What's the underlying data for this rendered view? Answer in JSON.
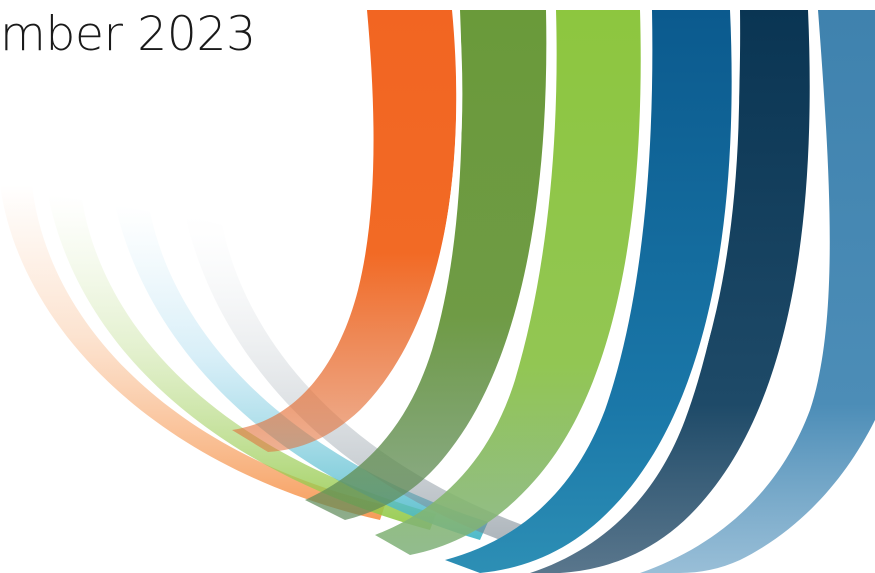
{
  "slide": {
    "title_fragment": "mber 2023"
  },
  "graphic": {
    "icon": "curved-color-ribbons",
    "colors": {
      "orange": "#F26522",
      "olive_green": "#6A9A3A",
      "lime_green": "#8DC63F",
      "blue": "#0B5A8E",
      "navy": "#0A3553",
      "steel_blue": "#3F82AE"
    }
  }
}
